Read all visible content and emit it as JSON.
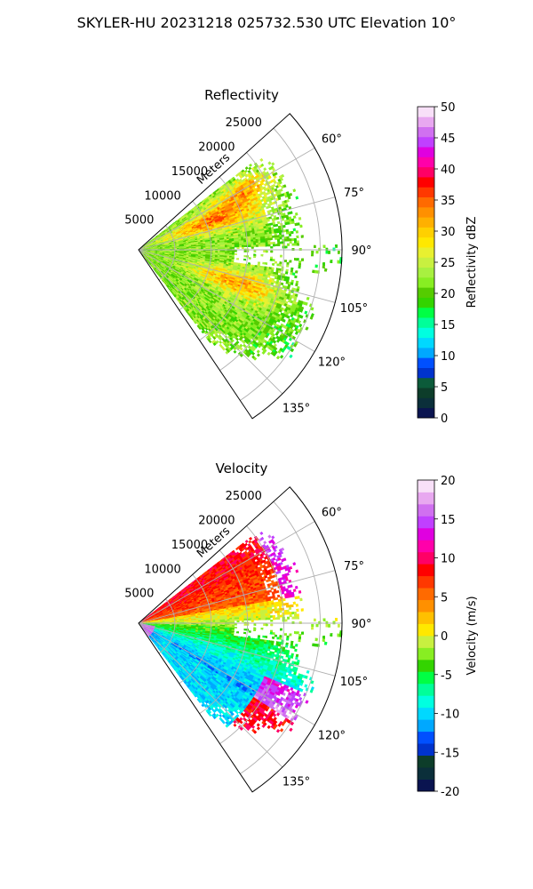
{
  "figure": {
    "suptitle": "SKYLER-HU  20231218  025732.530 UTC Elevation 10°"
  },
  "chart_data": [
    {
      "type": "heatmap",
      "subtype": "polar-sector",
      "title": "Reflectivity",
      "radial_axis_label": "Meters",
      "radial_ticks": [
        "5000",
        "10000",
        "15000",
        "20000",
        "25000"
      ],
      "radial_tick_values": [
        5000,
        10000,
        15000,
        20000,
        25000
      ],
      "r_max": 28000,
      "angle_range_deg": [
        48,
        146
      ],
      "angle_ticks": [
        "60°",
        "75°",
        "90°",
        "105°",
        "120°",
        "135°"
      ],
      "angle_tick_values": [
        60,
        75,
        90,
        105,
        120,
        135
      ],
      "grid": true,
      "colorbar": {
        "label": "Reflectivity dBZ",
        "vmin": 0,
        "vmax": 50,
        "ticks": [
          "0",
          "5",
          "10",
          "15",
          "20",
          "25",
          "30",
          "35",
          "40",
          "45",
          "50"
        ],
        "tick_values": [
          0,
          5,
          10,
          15,
          20,
          25,
          30,
          35,
          40,
          45,
          50
        ],
        "colors": [
          "#0a1450",
          "#0b2f3a",
          "#0d3d2a",
          "#0c5b3a",
          "#0033cc",
          "#0050ff",
          "#00a8ff",
          "#00d8ff",
          "#00ffe0",
          "#00ff99",
          "#00ff44",
          "#33d400",
          "#55cc00",
          "#88ee22",
          "#a8f040",
          "#c8f040",
          "#e8f030",
          "#ffe800",
          "#ffd000",
          "#ffb000",
          "#ff9000",
          "#ff6a00",
          "#ff3800",
          "#ff0000",
          "#ff0066",
          "#ff00aa",
          "#e000e0",
          "#c040ff",
          "#d070f0",
          "#e8a8f0",
          "#f8e0f8"
        ]
      },
      "data_description": "Gridded reflectivity field: mostly 20–27 dBZ (green/yellow) with bands of 30–38 dBZ (red) near 60–80° and 100–115°, weakening beyond ~20000 m"
    },
    {
      "type": "heatmap",
      "subtype": "polar-sector",
      "title": "Velocity",
      "radial_axis_label": "Meters",
      "radial_ticks": [
        "5000",
        "10000",
        "15000",
        "20000",
        "25000"
      ],
      "radial_tick_values": [
        5000,
        10000,
        15000,
        20000,
        25000
      ],
      "r_max": 28000,
      "angle_range_deg": [
        48,
        146
      ],
      "angle_ticks": [
        "60°",
        "75°",
        "90°",
        "105°",
        "120°",
        "135°"
      ],
      "angle_tick_values": [
        60,
        75,
        90,
        105,
        120,
        135
      ],
      "grid": true,
      "colorbar": {
        "label": "Velocity (m/s)",
        "vmin": -20,
        "vmax": 20,
        "ticks": [
          "-20",
          "-15",
          "-10",
          "-5",
          "0",
          "5",
          "10",
          "15",
          "20"
        ],
        "tick_values": [
          -20,
          -15,
          -10,
          -5,
          0,
          5,
          10,
          15,
          20
        ],
        "colors": [
          "#0a1450",
          "#0b2f3a",
          "#0d3d2a",
          "#0033cc",
          "#0050ff",
          "#00a8ff",
          "#00d8ff",
          "#00ffe0",
          "#00ff99",
          "#00ff44",
          "#33d400",
          "#88ee22",
          "#c8f040",
          "#ffe800",
          "#ffc000",
          "#ff9000",
          "#ff6a00",
          "#ff3800",
          "#ff0000",
          "#ff0066",
          "#ff00aa",
          "#e000e0",
          "#c040ff",
          "#d070f0",
          "#e8a8f0",
          "#f8e0f8"
        ]
      },
      "data_description": "Doppler velocity field: +5 to +12 m/s (orange/red) at 55–85°, about 0 to +3 m/s (yellow) near 90°, -5 to -12 m/s (green/cyan) at 95–120°, +10 to +18 m/s (red/magenta) beyond 20000 m near 120–130°"
    }
  ]
}
